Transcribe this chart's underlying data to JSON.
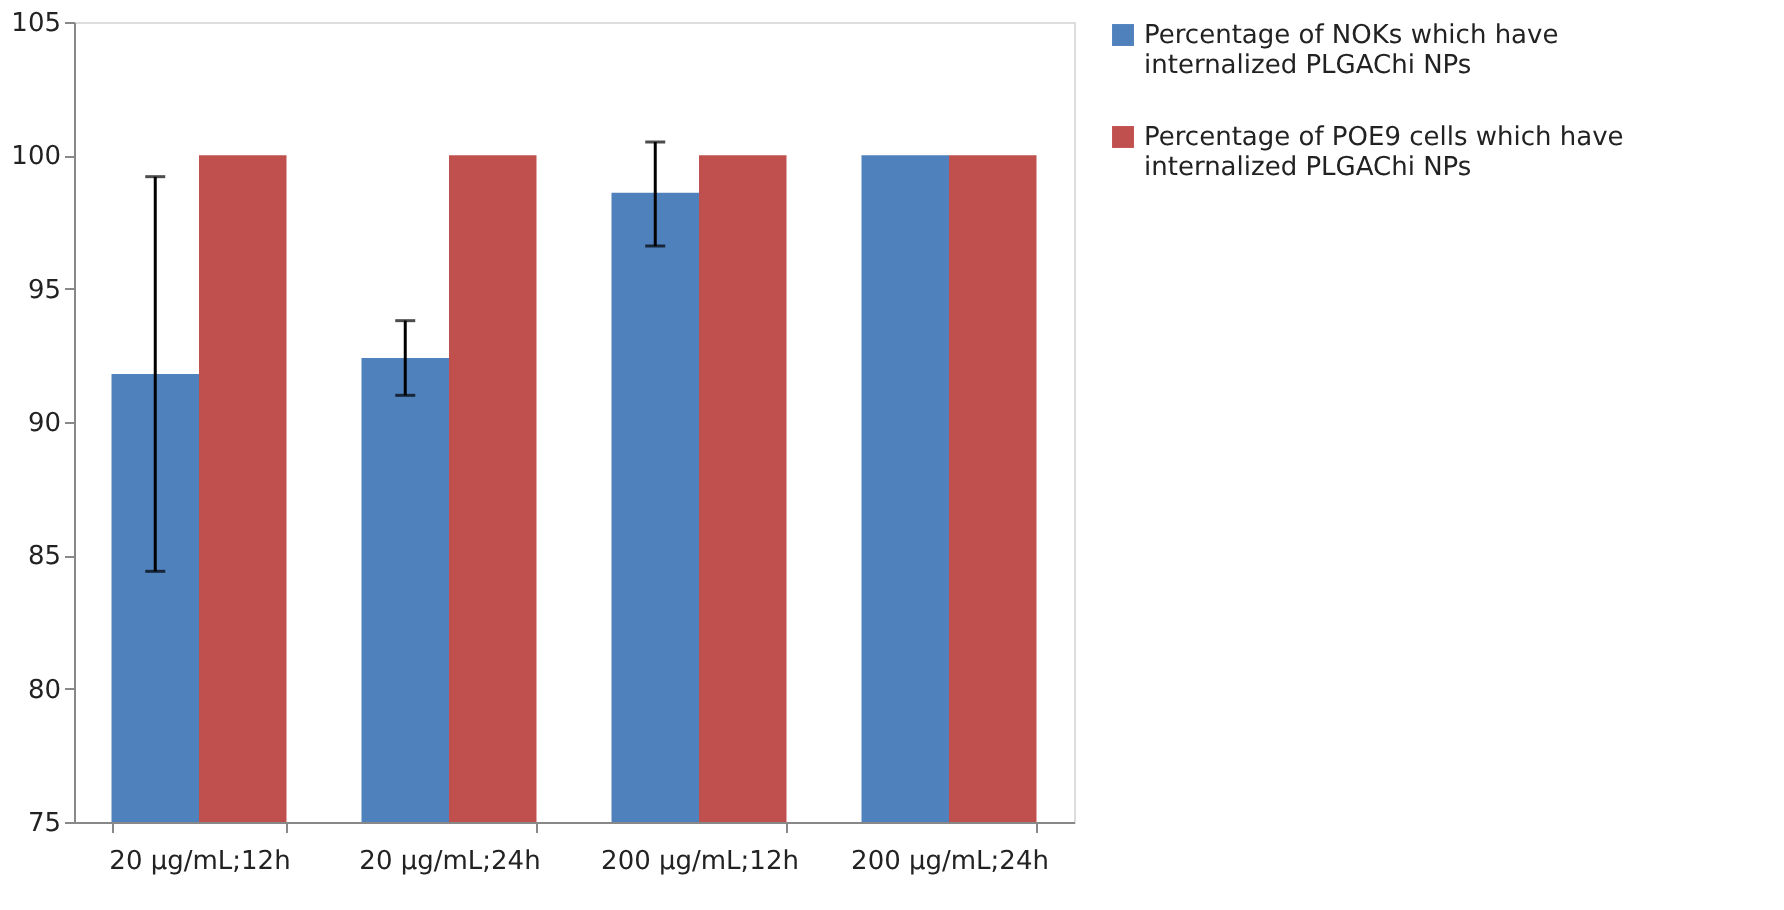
{
  "chart_data": {
    "type": "bar",
    "categories": [
      "20 µg/mL;12h",
      "20 µg/mL;24h",
      "200 µg/mL;12h",
      "200 µg/mL;24h"
    ],
    "series": [
      {
        "name": "Percentage of NOKs which have internalized PLGAChi NPs",
        "color": "#4f81bd",
        "values": [
          91.8,
          92.4,
          98.6,
          100
        ],
        "errors": [
          7.4,
          1.4,
          [
            96.6,
            100.5
          ],
          null
        ]
      },
      {
        "name": "Percentage of POE9 cells which have internalized PLGAChi NPs",
        "color": "#c0504d",
        "values": [
          100,
          100,
          100,
          100
        ]
      }
    ],
    "ylim": [
      75,
      105
    ],
    "yticks": [
      75,
      80,
      85,
      90,
      95,
      100,
      105
    ],
    "grid": false,
    "legend": "right"
  }
}
